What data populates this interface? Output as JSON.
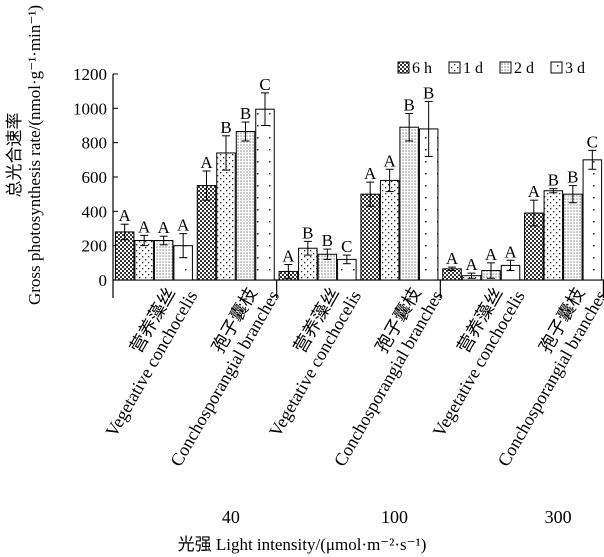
{
  "chart_data": {
    "type": "bar",
    "ylabel_cn": "总光合速率",
    "ylabel_en": "Gross photosynthesis rate/(nmol·g⁻¹·min⁻¹)",
    "xlabel": "光强 Light intensity/(μmol·m⁻²·s⁻¹)",
    "ylim": [
      0,
      1200
    ],
    "yticks": [
      "0",
      "200",
      "400",
      "600",
      "800",
      "1000",
      "1200"
    ],
    "groups": [
      {
        "label": "40",
        "categories": [
          {
            "cn": "营养藻丝",
            "en": "Vegetative conchocelis"
          },
          {
            "cn": "孢子囊枝",
            "en": "Conchosporangial branches"
          }
        ]
      },
      {
        "label": "100",
        "categories": [
          {
            "cn": "营养藻丝",
            "en": "Vegetative conchocelis"
          },
          {
            "cn": "孢子囊枝",
            "en": "Conchosporangial branches"
          }
        ]
      },
      {
        "label": "300",
        "categories": [
          {
            "cn": "营养藻丝",
            "en": "Vegetative conchocelis"
          },
          {
            "cn": "孢子囊枝",
            "en": "Conchosporangial branches"
          }
        ]
      }
    ],
    "series": [
      {
        "name": "6 h",
        "pattern": "check",
        "values": [
          280,
          550,
          50,
          500,
          65,
          390
        ],
        "errors": [
          45,
          85,
          40,
          70,
          10,
          75
        ],
        "letters": [
          "A",
          "A",
          "A",
          "A",
          "A",
          "A"
        ]
      },
      {
        "name": "1 d",
        "pattern": "sparse",
        "values": [
          230,
          740,
          185,
          580,
          25,
          520
        ],
        "errors": [
          30,
          100,
          40,
          65,
          15,
          12
        ],
        "letters": [
          "A",
          "B",
          "B",
          "A",
          "A",
          "B"
        ]
      },
      {
        "name": "2 d",
        "pattern": "dense",
        "values": [
          230,
          865,
          150,
          890,
          55,
          500
        ],
        "errors": [
          25,
          55,
          30,
          80,
          45,
          50
        ],
        "letters": [
          "A",
          "B",
          "B",
          "B",
          "A",
          "B"
        ]
      },
      {
        "name": "3 d",
        "pattern": "vsparse",
        "values": [
          200,
          995,
          120,
          880,
          85,
          700
        ],
        "errors": [
          70,
          95,
          25,
          160,
          30,
          55
        ],
        "letters": [
          "A",
          "C",
          "C",
          "B",
          "A",
          "C"
        ]
      }
    ]
  }
}
